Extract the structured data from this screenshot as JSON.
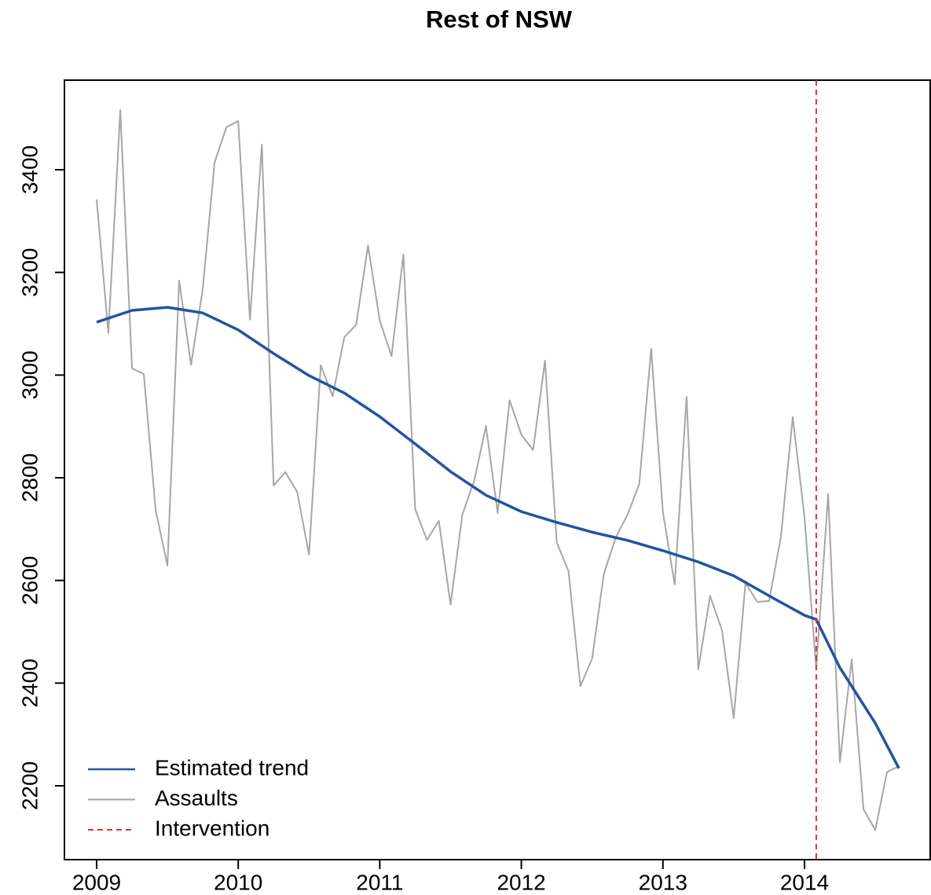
{
  "chart_data": {
    "type": "line",
    "title": "Rest of NSW",
    "xlim": [
      2008.7725,
      2014.888
    ],
    "xticks": [
      2009,
      2010,
      2011,
      2012,
      2013,
      2014
    ],
    "ylim": [
      2056.1,
      3574.5
    ],
    "yticks": [
      2200,
      2400,
      2600,
      2800,
      3000,
      3200,
      3400
    ],
    "legend": "bottom-left",
    "series": [
      {
        "name": "Estimated trend",
        "color": "#2155a0",
        "x": [
          2009,
          2009.25,
          2009.5,
          2009.75,
          2010,
          2010.25,
          2010.5,
          2010.75,
          2011,
          2011.25,
          2011.5,
          2011.75,
          2012,
          2012.25,
          2012.5,
          2012.75,
          2013,
          2013.25,
          2013.5,
          2013.75,
          2014,
          2014.083,
          2014.25,
          2014.5,
          2014.667
        ],
        "values": [
          3103,
          3126,
          3132,
          3121,
          3088,
          3042,
          2999,
          2965,
          2919,
          2866,
          2812,
          2766,
          2734,
          2713,
          2694,
          2678,
          2658,
          2636,
          2609,
          2570,
          2532,
          2524,
          2430,
          2322,
          2234
        ]
      },
      {
        "name": "Assaults",
        "color": "#a6a6a6",
        "x": [
          2009,
          2009.083,
          2009.167,
          2009.25,
          2009.333,
          2009.417,
          2009.5,
          2009.583,
          2009.667,
          2009.75,
          2009.833,
          2009.917,
          2010,
          2010.083,
          2010.167,
          2010.25,
          2010.333,
          2010.417,
          2010.5,
          2010.583,
          2010.667,
          2010.75,
          2010.833,
          2010.917,
          2011,
          2011.083,
          2011.167,
          2011.25,
          2011.333,
          2011.417,
          2011.5,
          2011.583,
          2011.667,
          2011.75,
          2011.833,
          2011.917,
          2012,
          2012.083,
          2012.167,
          2012.25,
          2012.333,
          2012.417,
          2012.5,
          2012.583,
          2012.667,
          2012.75,
          2012.833,
          2012.917,
          2013,
          2013.083,
          2013.167,
          2013.25,
          2013.333,
          2013.417,
          2013.5,
          2013.583,
          2013.667,
          2013.75,
          2013.833,
          2013.917,
          2014,
          2014.083,
          2014.167,
          2014.25,
          2014.333,
          2014.417,
          2014.5,
          2014.583,
          2014.667
        ],
        "values": [
          3342,
          3082,
          3516,
          3013,
          3002,
          2737,
          2629,
          3184,
          3020,
          3169,
          3414,
          3483,
          3495,
          3108,
          3449,
          2785,
          2811,
          2772,
          2650,
          3019,
          2959,
          3074,
          3098,
          3252,
          3106,
          3037,
          3235,
          2739,
          2679,
          2716,
          2553,
          2728,
          2794,
          2901,
          2731,
          2951,
          2884,
          2854,
          3028,
          2674,
          2618,
          2394,
          2448,
          2613,
          2684,
          2728,
          2788,
          3051,
          2733,
          2592,
          2958,
          2427,
          2570,
          2503,
          2332,
          2595,
          2558,
          2560,
          2684,
          2918,
          2723,
          2427,
          2768,
          2246,
          2446,
          2154,
          2114,
          2227,
          2238
        ]
      }
    ],
    "intervention": {
      "name": "Intervention",
      "x": 2014.083,
      "color": "#e8312f"
    }
  }
}
